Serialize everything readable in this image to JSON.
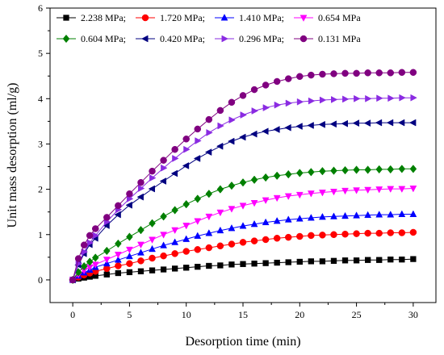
{
  "chart_data": {
    "type": "scatter",
    "xlabel": "Desorption time (min)",
    "ylabel": "Unit mass desorption (ml/g)",
    "xlim": [
      -2,
      32
    ],
    "ylim": [
      -0.5,
      6
    ],
    "xticks": [
      "0",
      "5",
      "10",
      "15",
      "20",
      "25",
      "30"
    ],
    "yticks": [
      "0",
      "1",
      "2",
      "3",
      "4",
      "5",
      "6"
    ],
    "grid": false,
    "legend_position": "top-left",
    "series": [
      {
        "name": "2.238 MPa;",
        "color": "#000000",
        "marker": "square",
        "x": [
          0,
          0.5,
          1,
          1.5,
          2,
          3,
          4,
          5,
          6,
          7,
          8,
          9,
          10,
          11,
          12,
          13,
          14,
          15,
          16,
          17,
          18,
          19,
          20,
          21,
          22,
          23,
          24,
          25,
          26,
          27,
          28,
          29,
          30
        ],
        "y": [
          0,
          0.03,
          0.05,
          0.07,
          0.09,
          0.12,
          0.15,
          0.17,
          0.19,
          0.21,
          0.23,
          0.25,
          0.27,
          0.29,
          0.31,
          0.32,
          0.34,
          0.35,
          0.36,
          0.37,
          0.38,
          0.39,
          0.4,
          0.41,
          0.41,
          0.42,
          0.43,
          0.43,
          0.44,
          0.44,
          0.45,
          0.45,
          0.46
        ]
      },
      {
        "name": "1.720 MPa;",
        "color": "#ff0000",
        "marker": "circle",
        "x": [
          0,
          0.5,
          1,
          1.5,
          2,
          3,
          4,
          5,
          6,
          7,
          8,
          9,
          10,
          11,
          12,
          13,
          14,
          15,
          16,
          17,
          18,
          19,
          20,
          21,
          22,
          23,
          24,
          25,
          26,
          27,
          28,
          29,
          30
        ],
        "y": [
          0,
          0.06,
          0.11,
          0.15,
          0.19,
          0.25,
          0.31,
          0.36,
          0.42,
          0.48,
          0.53,
          0.58,
          0.63,
          0.67,
          0.71,
          0.75,
          0.79,
          0.83,
          0.86,
          0.89,
          0.92,
          0.94,
          0.96,
          0.98,
          0.99,
          1.0,
          1.01,
          1.02,
          1.03,
          1.03,
          1.04,
          1.04,
          1.05
        ]
      },
      {
        "name": "1.410 MPa;",
        "color": "#0000ff",
        "marker": "triangle-up",
        "x": [
          0,
          0.5,
          1,
          1.5,
          2,
          3,
          4,
          5,
          6,
          7,
          8,
          9,
          10,
          11,
          12,
          13,
          14,
          15,
          16,
          17,
          18,
          19,
          20,
          21,
          22,
          23,
          24,
          25,
          26,
          27,
          28,
          29,
          30
        ],
        "y": [
          0,
          0.09,
          0.16,
          0.22,
          0.28,
          0.36,
          0.44,
          0.52,
          0.6,
          0.68,
          0.76,
          0.83,
          0.9,
          0.97,
          1.03,
          1.09,
          1.14,
          1.19,
          1.23,
          1.27,
          1.3,
          1.33,
          1.35,
          1.37,
          1.39,
          1.4,
          1.41,
          1.42,
          1.43,
          1.44,
          1.44,
          1.45,
          1.45
        ]
      },
      {
        "name": "0.654 MPa",
        "color": "#ff00ff",
        "marker": "triangle-down",
        "x": [
          0,
          0.5,
          1,
          1.5,
          2,
          3,
          4,
          5,
          6,
          7,
          8,
          9,
          10,
          11,
          12,
          13,
          14,
          15,
          16,
          17,
          18,
          19,
          20,
          21,
          22,
          23,
          24,
          25,
          26,
          27,
          28,
          29,
          30
        ],
        "y": [
          0,
          0.12,
          0.21,
          0.28,
          0.34,
          0.45,
          0.56,
          0.67,
          0.78,
          0.89,
          1.0,
          1.1,
          1.2,
          1.3,
          1.4,
          1.49,
          1.57,
          1.64,
          1.7,
          1.76,
          1.81,
          1.85,
          1.88,
          1.91,
          1.93,
          1.95,
          1.97,
          1.98,
          1.99,
          2.0,
          2.01,
          2.01,
          2.02
        ]
      },
      {
        "name": "0.604 MPa;",
        "color": "#008000",
        "marker": "diamond",
        "x": [
          0,
          0.5,
          1,
          1.5,
          2,
          3,
          4,
          5,
          6,
          7,
          8,
          9,
          10,
          11,
          12,
          13,
          14,
          15,
          16,
          17,
          18,
          19,
          20,
          21,
          22,
          23,
          24,
          25,
          26,
          27,
          28,
          29,
          30
        ],
        "y": [
          0,
          0.17,
          0.3,
          0.4,
          0.49,
          0.64,
          0.8,
          0.95,
          1.1,
          1.25,
          1.4,
          1.54,
          1.67,
          1.79,
          1.9,
          2.0,
          2.08,
          2.15,
          2.21,
          2.26,
          2.3,
          2.33,
          2.36,
          2.38,
          2.4,
          2.41,
          2.42,
          2.43,
          2.43,
          2.44,
          2.44,
          2.45,
          2.45
        ]
      },
      {
        "name": "0.420 MPa;",
        "color": "#000080",
        "marker": "triangle-left",
        "x": [
          0,
          0.5,
          1,
          1.5,
          2,
          3,
          4,
          5,
          6,
          7,
          8,
          9,
          10,
          11,
          12,
          13,
          14,
          15,
          16,
          17,
          18,
          19,
          20,
          21,
          22,
          23,
          24,
          25,
          26,
          27,
          28,
          29,
          30
        ],
        "y": [
          0,
          0.33,
          0.58,
          0.78,
          0.92,
          1.2,
          1.44,
          1.65,
          1.83,
          2.01,
          2.18,
          2.35,
          2.52,
          2.68,
          2.82,
          2.95,
          3.06,
          3.15,
          3.22,
          3.28,
          3.32,
          3.36,
          3.39,
          3.41,
          3.43,
          3.44,
          3.45,
          3.46,
          3.46,
          3.47,
          3.47,
          3.47,
          3.47
        ]
      },
      {
        "name": "0.296 MPa;",
        "color": "#8a2be2",
        "marker": "triangle-right",
        "x": [
          0,
          0.5,
          1,
          1.5,
          2,
          3,
          4,
          5,
          6,
          7,
          8,
          9,
          10,
          11,
          12,
          13,
          14,
          15,
          16,
          17,
          18,
          19,
          20,
          21,
          22,
          23,
          24,
          25,
          26,
          27,
          28,
          29,
          30
        ],
        "y": [
          0,
          0.36,
          0.62,
          0.82,
          0.98,
          1.28,
          1.55,
          1.79,
          2.02,
          2.25,
          2.47,
          2.68,
          2.88,
          3.07,
          3.25,
          3.4,
          3.53,
          3.64,
          3.73,
          3.8,
          3.86,
          3.9,
          3.93,
          3.95,
          3.97,
          3.98,
          3.99,
          4.0,
          4.0,
          4.01,
          4.01,
          4.02,
          4.02
        ]
      },
      {
        "name": "0.131 MPa",
        "color": "#800080",
        "marker": "circle",
        "x": [
          0,
          0.5,
          1,
          1.5,
          2,
          3,
          4,
          5,
          6,
          7,
          8,
          9,
          10,
          11,
          12,
          13,
          14,
          15,
          16,
          17,
          18,
          19,
          20,
          21,
          22,
          23,
          24,
          25,
          26,
          27,
          28,
          29,
          30
        ],
        "y": [
          0,
          0.47,
          0.77,
          0.98,
          1.13,
          1.38,
          1.64,
          1.9,
          2.15,
          2.4,
          2.64,
          2.88,
          3.11,
          3.33,
          3.54,
          3.74,
          3.92,
          4.07,
          4.2,
          4.3,
          4.38,
          4.44,
          4.49,
          4.52,
          4.54,
          4.55,
          4.56,
          4.56,
          4.57,
          4.57,
          4.57,
          4.58,
          4.58
        ]
      }
    ]
  }
}
